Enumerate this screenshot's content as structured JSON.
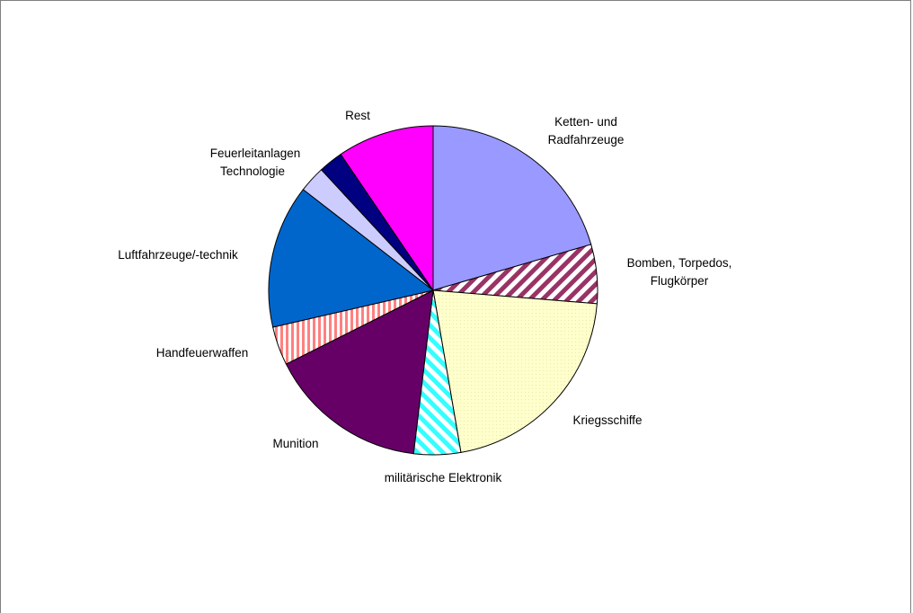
{
  "chart_data": {
    "type": "pie",
    "title": "",
    "legend": "none",
    "slices": [
      {
        "label": [
          "Ketten- und",
          "Radfahrzeuge"
        ],
        "value": 20.5,
        "color": "#9999ff",
        "pattern": "none"
      },
      {
        "label": [
          "Bomben, Torpedos,",
          "Flugkörper"
        ],
        "value": 5.8,
        "color": "#993366",
        "pattern": "wide-upward-diagonal"
      },
      {
        "label": [
          "Kriegsschiffe"
        ],
        "value": 21.0,
        "color": "#ffffcc",
        "pattern": "dotted"
      },
      {
        "label": [
          "militärische Elektronik"
        ],
        "value": 4.6,
        "color": "#33ffff",
        "pattern": "wide-downward-diagonal"
      },
      {
        "label": [
          "Munition"
        ],
        "value": 15.7,
        "color": "#660066",
        "pattern": "none"
      },
      {
        "label": [
          "Handfeuerwaffen"
        ],
        "value": 3.8,
        "color": "#ff8080",
        "pattern": "vertical-stripes"
      },
      {
        "label": [
          "Luftfahrzeuge/-technik"
        ],
        "value": 14.1,
        "color": "#0066cc",
        "pattern": "none"
      },
      {
        "label": [
          "Technologie"
        ],
        "value": 2.6,
        "color": "#ccccff",
        "pattern": "none"
      },
      {
        "label": [
          "Feuerleitanlagen"
        ],
        "value": 2.4,
        "color": "#000080",
        "pattern": "none"
      },
      {
        "label": [
          "Rest"
        ],
        "value": 9.5,
        "color": "#ff00ff",
        "pattern": "none"
      }
    ]
  }
}
